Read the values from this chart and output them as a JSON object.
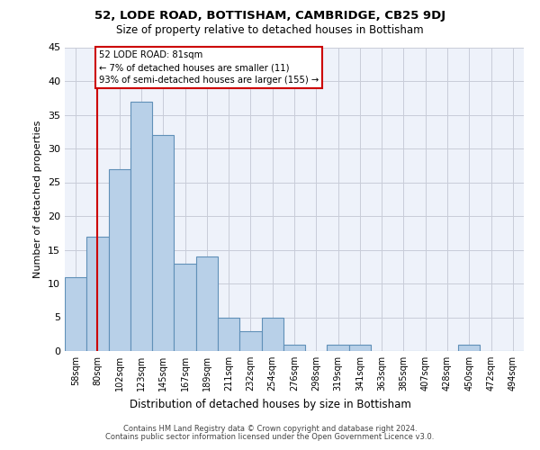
{
  "title": "52, LODE ROAD, BOTTISHAM, CAMBRIDGE, CB25 9DJ",
  "subtitle": "Size of property relative to detached houses in Bottisham",
  "xlabel": "Distribution of detached houses by size in Bottisham",
  "ylabel": "Number of detached properties",
  "categories": [
    "58sqm",
    "80sqm",
    "102sqm",
    "123sqm",
    "145sqm",
    "167sqm",
    "189sqm",
    "211sqm",
    "232sqm",
    "254sqm",
    "276sqm",
    "298sqm",
    "319sqm",
    "341sqm",
    "363sqm",
    "385sqm",
    "407sqm",
    "428sqm",
    "450sqm",
    "472sqm",
    "494sqm"
  ],
  "values": [
    11,
    17,
    27,
    37,
    32,
    13,
    14,
    5,
    3,
    5,
    1,
    0,
    1,
    1,
    0,
    0,
    0,
    0,
    1,
    0,
    0
  ],
  "bar_color": "#b8d0e8",
  "bar_edge_color": "#6090b8",
  "annotation_text": "52 LODE ROAD: 81sqm\n← 7% of detached houses are smaller (11)\n93% of semi-detached houses are larger (155) →",
  "vline_color": "#cc0000",
  "vline_x": 1.0,
  "ylim": [
    0,
    45
  ],
  "yticks": [
    0,
    5,
    10,
    15,
    20,
    25,
    30,
    35,
    40,
    45
  ],
  "grid_color": "#c8ccd8",
  "bg_color": "#eef2fa",
  "footer1": "Contains HM Land Registry data © Crown copyright and database right 2024.",
  "footer2": "Contains public sector information licensed under the Open Government Licence v3.0."
}
